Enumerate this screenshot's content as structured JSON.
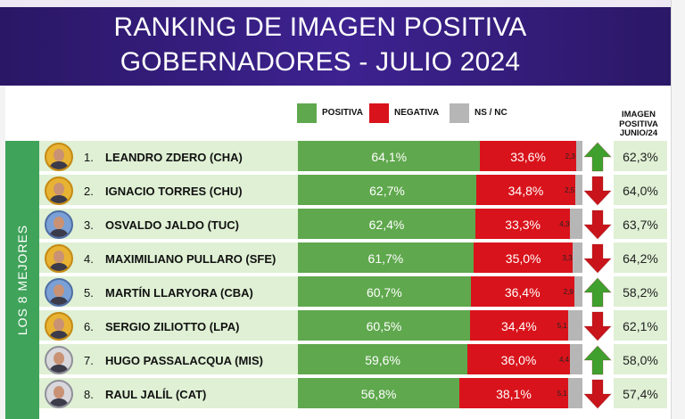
{
  "title_line1": "RANKING DE IMAGEN POSITIVA",
  "title_line2": "GOBERNADORES - JULIO 2024",
  "legend": [
    {
      "label": "POSITIVA",
      "color": "#5fa84d"
    },
    {
      "label": "NEGATIVA",
      "color": "#d9131b"
    },
    {
      "label": "NS / NC",
      "color": "#b6b6b6"
    }
  ],
  "previous_column_header": [
    "IMAGEN",
    "POSITIVA",
    "JUNIO/24"
  ],
  "side_label": "LOS 8 MEJORES",
  "colors": {
    "up_arrow": "#3fa02e",
    "down_arrow": "#c8141a",
    "positive": "#5fa84d",
    "negative": "#d9131b",
    "nsnc": "#b6b6b6"
  },
  "chart_data": {
    "type": "bar",
    "title": "RANKING DE IMAGEN POSITIVA GOBERNADORES - JULIO 2024",
    "stacked": true,
    "orientation": "horizontal",
    "categories": [
      "LEANDRO ZDERO (CHA)",
      "IGNACIO TORRES (CHU)",
      "OSVALDO JALDO (TUC)",
      "MAXIMILIANO PULLARO (SFE)",
      "MARTÍN LLARYORA (CBA)",
      "SERGIO ZILIOTTO (LPA)",
      "HUGO PASSALACQUA (MIS)",
      "RAUL JALÍL (CAT)"
    ],
    "ranks": [
      "1.",
      "2.",
      "3.",
      "4.",
      "5.",
      "6.",
      "7.",
      "8."
    ],
    "series": [
      {
        "name": "POSITIVA",
        "values": [
          64.1,
          62.7,
          62.4,
          61.7,
          60.7,
          60.5,
          59.6,
          56.8
        ],
        "labels": [
          "64,1%",
          "62,7%",
          "62,4%",
          "61,7%",
          "60,7%",
          "60,5%",
          "59,6%",
          "56,8%"
        ]
      },
      {
        "name": "NEGATIVA",
        "values": [
          33.6,
          34.8,
          33.3,
          35.0,
          36.4,
          34.4,
          36.0,
          38.1
        ],
        "labels": [
          "33,6%",
          "34,8%",
          "33,3%",
          "35,0%",
          "36,4%",
          "34,4%",
          "36,0%",
          "38,1%"
        ]
      },
      {
        "name": "NS / NC",
        "values": [
          2.3,
          2.5,
          4.3,
          3.3,
          2.9,
          5.1,
          4.4,
          5.1
        ],
        "labels": [
          "2,3",
          "2,5",
          "4,3",
          "3,3",
          "2,9",
          "5,1",
          "4,4",
          "5,1"
        ]
      }
    ],
    "trend": [
      "up",
      "down",
      "down",
      "down",
      "up",
      "down",
      "up",
      "down"
    ],
    "previous": {
      "name": "IMAGEN POSITIVA JUNIO/24",
      "values": [
        62.3,
        64.0,
        63.7,
        64.2,
        58.2,
        62.1,
        58.0,
        57.4
      ],
      "labels": [
        "62,3%",
        "64,0%",
        "63,7%",
        "64,2%",
        "58,2%",
        "62,1%",
        "58,0%",
        "57,4%"
      ]
    },
    "xlim": [
      0,
      100
    ]
  }
}
